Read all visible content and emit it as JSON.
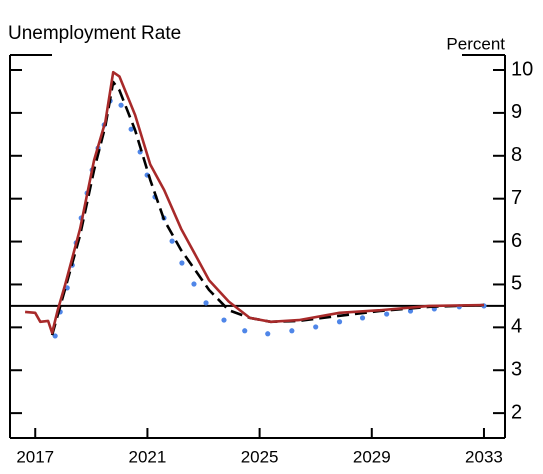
{
  "chart_data": {
    "type": "line",
    "title": "Unemployment Rate",
    "y_axis_label": "Percent",
    "xlim": [
      2016.1,
      2033.75
    ],
    "xticks": [
      2017,
      2021,
      2025,
      2029,
      2033
    ],
    "ylim": [
      1.42,
      10.35
    ],
    "yticks": [
      2,
      3,
      4,
      5,
      6,
      7,
      8,
      9,
      10
    ],
    "reference_line": 4.5,
    "y_axis_side": "right",
    "series": [
      {
        "color": "#4f86e8",
        "style": "dots",
        "x": [
          2017.71,
          2017.89,
          2018.14,
          2018.32,
          2018.46,
          2018.64,
          2018.85,
          2019.03,
          2019.24,
          2019.46,
          2019.67,
          2020.06,
          2020.42,
          2020.74,
          2020.99,
          2021.27,
          2021.59,
          2021.88,
          2022.23,
          2022.66,
          2023.09,
          2023.73,
          2024.47,
          2025.29,
          2026.15,
          2027.0,
          2027.85,
          2028.67,
          2029.53,
          2030.38,
          2031.23,
          2032.12,
          2033.0
        ],
        "values": [
          3.8,
          4.36,
          4.92,
          5.45,
          5.97,
          6.55,
          7.13,
          7.67,
          8.18,
          8.72,
          9.28,
          9.18,
          8.62,
          8.09,
          7.55,
          7.04,
          6.55,
          6.01,
          5.5,
          5.01,
          4.57,
          4.17,
          3.92,
          3.85,
          3.92,
          4.01,
          4.13,
          4.22,
          4.31,
          4.38,
          4.43,
          4.48,
          4.5
        ]
      },
      {
        "color": "#000000",
        "style": "dashed",
        "x": [
          2017.6,
          2018.07,
          2018.6,
          2019.1,
          2019.5,
          2019.78,
          2020.0,
          2020.56,
          2021.1,
          2021.6,
          2022.2,
          2022.7,
          2023.2,
          2023.9,
          2024.65,
          2025.4,
          2026.4,
          2027.85,
          2029.3,
          2031.05,
          2033.0
        ],
        "values": [
          3.82,
          4.9,
          6.15,
          7.67,
          8.7,
          9.72,
          9.53,
          8.6,
          7.44,
          6.5,
          5.8,
          5.34,
          4.87,
          4.4,
          4.22,
          4.13,
          4.15,
          4.27,
          4.38,
          4.48,
          4.52
        ]
      },
      {
        "color": "#a82a2a",
        "style": "solid",
        "x": [
          2016.64,
          2017.0,
          2017.18,
          2017.46,
          2017.6,
          2017.8,
          2018.07,
          2018.6,
          2019.1,
          2019.5,
          2019.78,
          2020.0,
          2020.56,
          2021.1,
          2021.6,
          2022.2,
          2022.7,
          2023.2,
          2023.9,
          2024.65,
          2025.4,
          2026.4,
          2027.85,
          2029.3,
          2031.05,
          2033.0
        ],
        "values": [
          4.36,
          4.34,
          4.13,
          4.15,
          3.87,
          4.4,
          5.0,
          6.3,
          7.9,
          8.8,
          9.95,
          9.85,
          8.95,
          7.8,
          7.2,
          6.3,
          5.7,
          5.1,
          4.6,
          4.22,
          4.13,
          4.17,
          4.34,
          4.4,
          4.5,
          4.52
        ]
      }
    ]
  }
}
